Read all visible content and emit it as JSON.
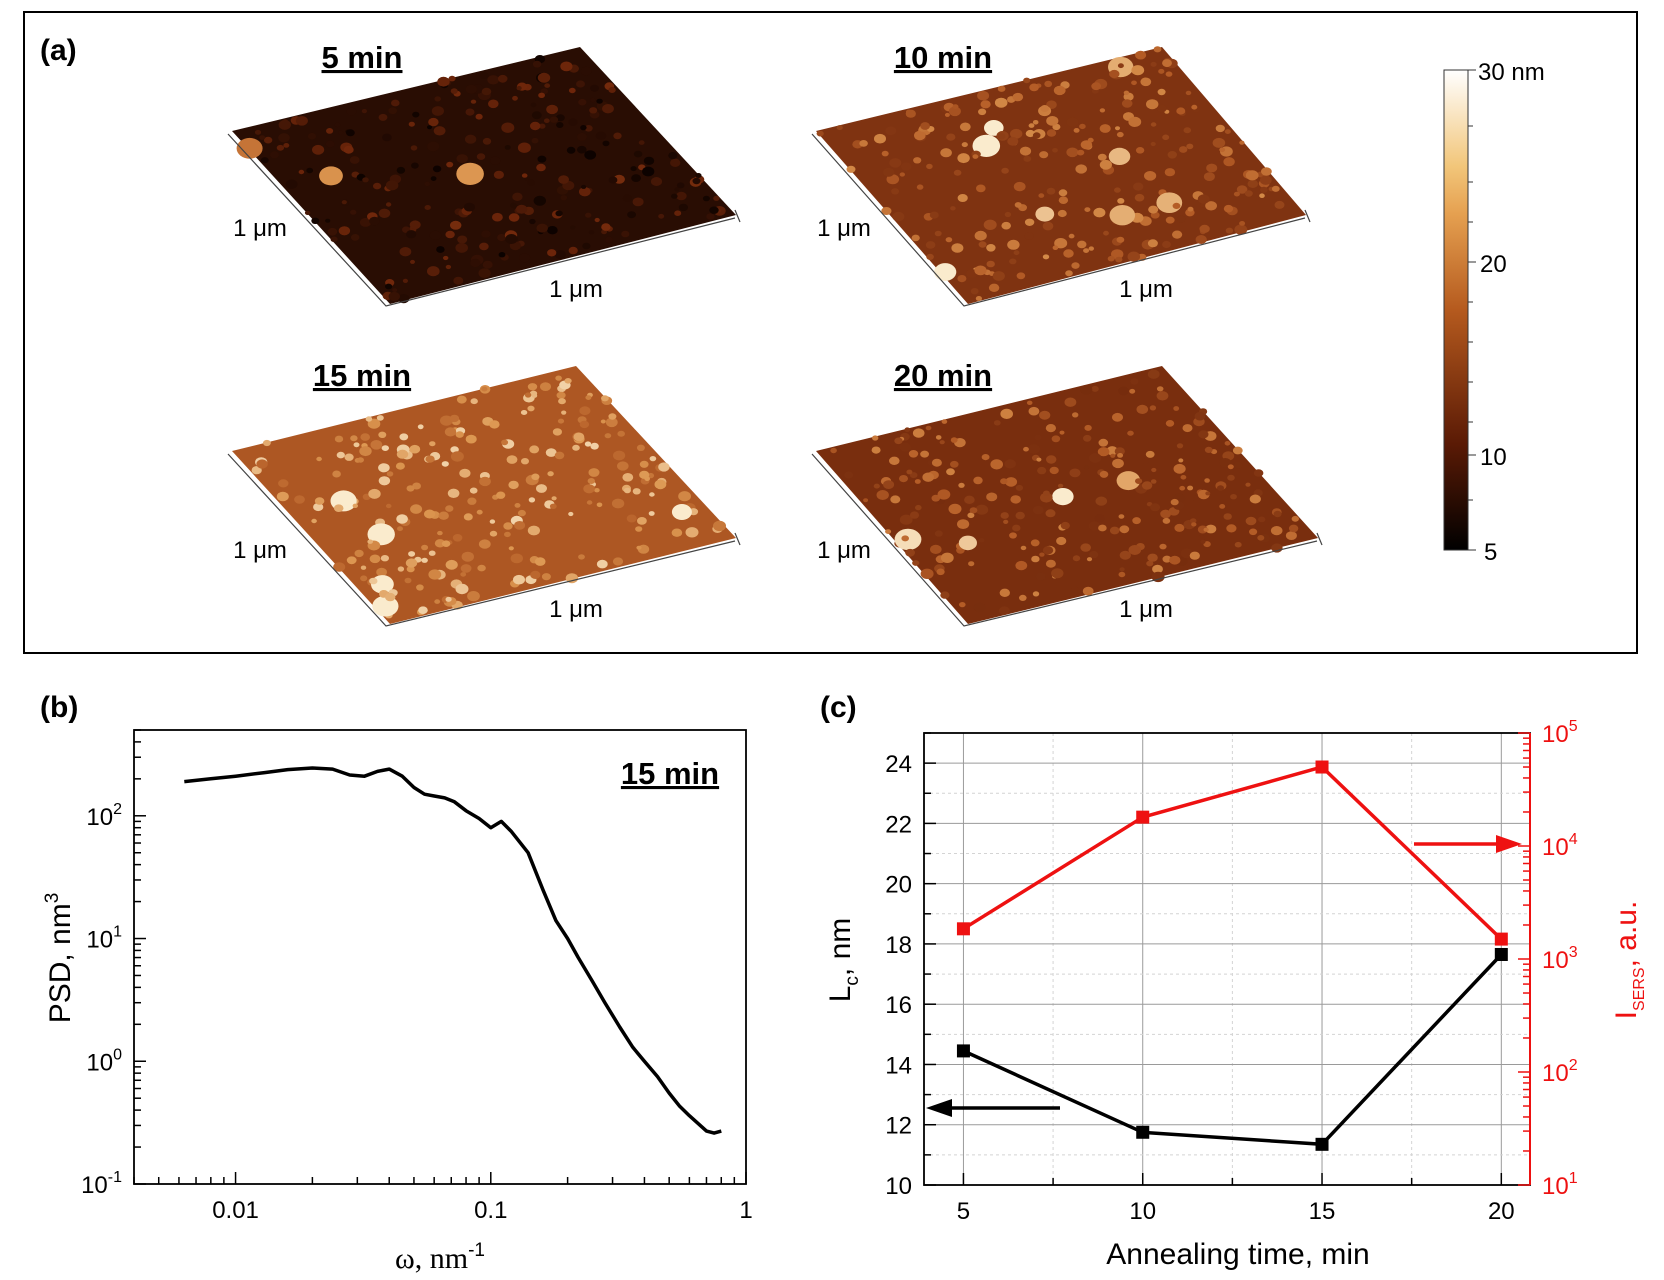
{
  "panel_a": {
    "label": "(a)",
    "scans": [
      {
        "title": "5 min",
        "label_y": "1 μm",
        "label_x": "1 μm",
        "tone": 0.1
      },
      {
        "title": "10 min",
        "label_y": "1 μm",
        "label_x": "1 μm",
        "tone": 0.48
      },
      {
        "title": "15 min",
        "label_y": "1 μm",
        "label_x": "1 μm",
        "tone": 0.7
      },
      {
        "title": "20 min",
        "label_y": "1 μm",
        "label_x": "1 μm",
        "tone": 0.45
      }
    ],
    "colorbar": {
      "top_label": "30 nm",
      "tick_labels": [
        "20",
        "10",
        "5"
      ],
      "colors": {
        "low": "#000000",
        "mid_dark": "#5a1a05",
        "mid": "#b55a1e",
        "mid_light": "#e5a050",
        "light": "#f2c67a",
        "high": "#ffffff"
      }
    }
  },
  "panel_b": {
    "label": "(b)",
    "annotation": "15 min"
  },
  "panel_c": {
    "label": "(c)"
  },
  "chart_data": [
    {
      "type": "line",
      "id": "psd",
      "xlabel": "ω, nm",
      "xlabel_sup": "-1",
      "ylabel": "PSD, nm",
      "ylabel_sup": "3",
      "xscale": "log",
      "yscale": "log",
      "xlim": [
        0.004,
        1
      ],
      "ylim": [
        0.1,
        500
      ],
      "x_ticks": [
        {
          "v": 0.01,
          "label": "0.01"
        },
        {
          "v": 0.1,
          "label": "0.1"
        },
        {
          "v": 1,
          "label": "1"
        }
      ],
      "y_ticks": [
        {
          "v": 0.1,
          "base": "10",
          "exp": "-1"
        },
        {
          "v": 1,
          "base": "10",
          "exp": "0"
        },
        {
          "v": 10,
          "base": "10",
          "exp": "1"
        },
        {
          "v": 100,
          "base": "10",
          "exp": "2"
        }
      ],
      "series": [
        {
          "name": "15 min",
          "color": "#000000",
          "x": [
            0.0063,
            0.008,
            0.01,
            0.013,
            0.016,
            0.02,
            0.024,
            0.028,
            0.032,
            0.036,
            0.04,
            0.045,
            0.05,
            0.055,
            0.06,
            0.066,
            0.072,
            0.08,
            0.09,
            0.1,
            0.11,
            0.12,
            0.14,
            0.16,
            0.18,
            0.2,
            0.22,
            0.25,
            0.28,
            0.32,
            0.36,
            0.4,
            0.45,
            0.5,
            0.55,
            0.6,
            0.65,
            0.7,
            0.75,
            0.8
          ],
          "y": [
            190,
            200,
            210,
            225,
            238,
            245,
            240,
            215,
            210,
            230,
            240,
            210,
            170,
            150,
            145,
            140,
            130,
            110,
            95,
            80,
            90,
            75,
            50,
            25,
            14,
            10,
            7,
            4.5,
            3.0,
            1.9,
            1.3,
            1.0,
            0.75,
            0.55,
            0.43,
            0.36,
            0.31,
            0.27,
            0.26,
            0.27
          ]
        }
      ]
    },
    {
      "type": "line",
      "id": "lc-isers",
      "xlabel": "Annealing time, min",
      "ylabel": "L",
      "ylabel_sub": "c",
      "ylabel_unit": ", nm",
      "y2label": "I",
      "y2label_sub": "SERS",
      "y2label_unit": ", a.u.",
      "xlim": [
        3.9,
        20.8
      ],
      "ylim": [
        10,
        25
      ],
      "y2scale": "log",
      "y2lim": [
        10,
        100000
      ],
      "x_ticks": [
        5,
        10,
        15,
        20
      ],
      "y_ticks": [
        10,
        12,
        14,
        16,
        18,
        20,
        22,
        24
      ],
      "y2_ticks": [
        {
          "v": 10,
          "base": "10",
          "exp": "1"
        },
        {
          "v": 100,
          "base": "10",
          "exp": "2"
        },
        {
          "v": 1000,
          "base": "10",
          "exp": "3"
        },
        {
          "v": 10000,
          "base": "10",
          "exp": "4"
        },
        {
          "v": 100000,
          "base": "10",
          "exp": "5"
        }
      ],
      "grid": true,
      "series": [
        {
          "name": "L_c",
          "axis": "left",
          "color": "#000000",
          "x": [
            5,
            10,
            15,
            20
          ],
          "values": [
            14.45,
            11.75,
            11.35,
            17.65
          ]
        },
        {
          "name": "I_SERS",
          "axis": "right",
          "color": "#ee1111",
          "x": [
            5,
            10,
            15,
            20
          ],
          "values": [
            1850,
            18000,
            50000,
            1500
          ]
        }
      ],
      "annotations": [
        "arrow pointing left to L_c axis",
        "arrow pointing right to I_SERS axis"
      ]
    }
  ]
}
